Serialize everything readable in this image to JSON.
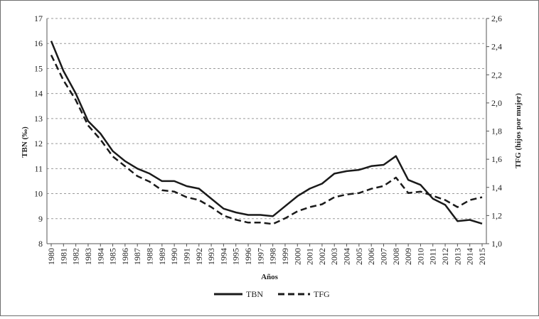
{
  "chart_data": {
    "type": "line",
    "title": "",
    "xlabel": "Años",
    "ylabel_left": "TBN (‰)",
    "ylabel_right": "TFG (hijos por mujer)",
    "ylim_left": [
      8,
      17
    ],
    "ylim_right": [
      1.0,
      2.6
    ],
    "yticks_left": [
      "8",
      "9",
      "10",
      "11",
      "12",
      "13",
      "14",
      "15",
      "16",
      "17"
    ],
    "yticks_right": [
      "1,0",
      "1,2",
      "1,4",
      "1,6",
      "1,8",
      "2,0",
      "2,2",
      "2,4",
      "2,6"
    ],
    "grid": true,
    "legend_position": "bottom",
    "x": [
      "1980",
      "1981",
      "1982",
      "1983",
      "1984",
      "1985",
      "1986",
      "1987",
      "1988",
      "1989",
      "1990",
      "1991",
      "1992",
      "1993",
      "1994",
      "1995",
      "1996",
      "1997",
      "1998",
      "1999",
      "2000",
      "2001",
      "2002",
      "2003",
      "2004",
      "2005",
      "2006",
      "2007",
      "2008",
      "2009",
      "2010",
      "2011",
      "2012",
      "2013",
      "2014",
      "2015"
    ],
    "series": [
      {
        "name": "TBN",
        "axis": "left",
        "style": "solid",
        "color": "#1a1a1a",
        "values": [
          16.1,
          14.9,
          14.0,
          12.9,
          12.4,
          11.7,
          11.3,
          11.0,
          10.8,
          10.5,
          10.5,
          10.3,
          10.2,
          9.8,
          9.4,
          9.25,
          9.15,
          9.15,
          9.1,
          9.5,
          9.9,
          10.2,
          10.4,
          10.8,
          10.9,
          10.95,
          11.1,
          11.15,
          11.5,
          10.55,
          10.35,
          9.8,
          9.55,
          8.9,
          8.95,
          8.8
        ]
      },
      {
        "name": "TFG",
        "axis": "right",
        "style": "dashed",
        "color": "#1a1a1a",
        "values": [
          2.34,
          2.16,
          2.02,
          1.84,
          1.74,
          1.62,
          1.55,
          1.48,
          1.44,
          1.38,
          1.37,
          1.33,
          1.31,
          1.26,
          1.2,
          1.17,
          1.15,
          1.15,
          1.14,
          1.18,
          1.23,
          1.26,
          1.28,
          1.33,
          1.35,
          1.36,
          1.39,
          1.41,
          1.47,
          1.36,
          1.37,
          1.34,
          1.31,
          1.26,
          1.31,
          1.33
        ]
      }
    ]
  }
}
